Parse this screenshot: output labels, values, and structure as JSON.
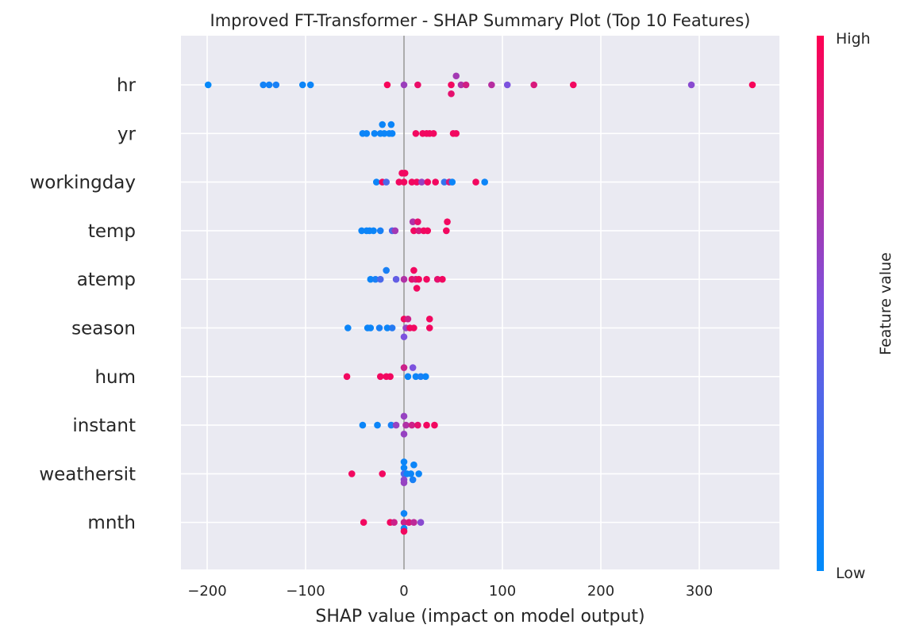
{
  "chart_data": {
    "type": "scatter",
    "title": "Improved FT-Transformer - SHAP Summary Plot (Top 10 Features)",
    "xlabel": "SHAP value (impact on model output)",
    "xlim": [
      -225,
      380
    ],
    "xticks": [
      -200,
      -100,
      0,
      100,
      200,
      300
    ],
    "xtick_labels": [
      "−200",
      "−100",
      "0",
      "100",
      "200",
      "300"
    ],
    "grid": true,
    "colorbar": {
      "label": "Feature value",
      "high_label": "High",
      "low_label": "Low",
      "low_color": "#008bfb",
      "mid_color": "#7c52de",
      "high_color": "#ff0052"
    },
    "features": [
      {
        "label": "hr",
        "points": [
          {
            "x": -199,
            "v": 0.02,
            "j": 0
          },
          {
            "x": -143,
            "v": 0.08,
            "j": 0
          },
          {
            "x": -137,
            "v": 0.08,
            "j": 0
          },
          {
            "x": -130,
            "v": 0.1,
            "j": 0
          },
          {
            "x": -103,
            "v": 0.05,
            "j": 0
          },
          {
            "x": -95,
            "v": 0.05,
            "j": 0
          },
          {
            "x": -17,
            "v": 0.97,
            "j": 0
          },
          {
            "x": 0,
            "v": 0.62,
            "j": 0
          },
          {
            "x": 14,
            "v": 0.92,
            "j": 0
          },
          {
            "x": 48,
            "v": 0.95,
            "j": 0
          },
          {
            "x": 53,
            "v": 0.65,
            "j": -0.45
          },
          {
            "x": 58,
            "v": 0.7,
            "j": 0
          },
          {
            "x": 48,
            "v": 0.9,
            "j": 0.45
          },
          {
            "x": 63,
            "v": 0.82,
            "j": 0
          },
          {
            "x": 89,
            "v": 0.72,
            "j": 0
          },
          {
            "x": 105,
            "v": 0.5,
            "j": 0
          },
          {
            "x": 132,
            "v": 0.85,
            "j": 0
          },
          {
            "x": 172,
            "v": 0.95,
            "j": 0
          },
          {
            "x": 292,
            "v": 0.55,
            "j": 0
          },
          {
            "x": 354,
            "v": 0.97,
            "j": 0
          }
        ]
      },
      {
        "label": "yr",
        "points": [
          {
            "x": -42,
            "v": 0.05,
            "j": 0
          },
          {
            "x": -38,
            "v": 0.05,
            "j": 0
          },
          {
            "x": -30,
            "v": 0.05,
            "j": 0
          },
          {
            "x": -24,
            "v": 0.05,
            "j": 0
          },
          {
            "x": -22,
            "v": 0.05,
            "j": -0.45
          },
          {
            "x": -20,
            "v": 0.05,
            "j": 0
          },
          {
            "x": -15,
            "v": 0.05,
            "j": 0
          },
          {
            "x": -12,
            "v": 0.05,
            "j": 0
          },
          {
            "x": -13,
            "v": 0.05,
            "j": -0.45
          },
          {
            "x": 12,
            "v": 0.95,
            "j": 0
          },
          {
            "x": 19,
            "v": 0.95,
            "j": 0
          },
          {
            "x": 23,
            "v": 0.95,
            "j": 0
          },
          {
            "x": 26,
            "v": 0.95,
            "j": 0
          },
          {
            "x": 30,
            "v": 0.95,
            "j": 0
          },
          {
            "x": 50,
            "v": 0.95,
            "j": 0
          },
          {
            "x": 53,
            "v": 0.95,
            "j": 0
          }
        ]
      },
      {
        "label": "workingday",
        "points": [
          {
            "x": -28,
            "v": 0.05,
            "j": 0
          },
          {
            "x": -22,
            "v": 0.95,
            "j": 0
          },
          {
            "x": -18,
            "v": 0.3,
            "j": 0
          },
          {
            "x": -5,
            "v": 0.95,
            "j": 0
          },
          {
            "x": -2,
            "v": 0.95,
            "j": -0.45
          },
          {
            "x": 0,
            "v": 0.95,
            "j": 0
          },
          {
            "x": 1,
            "v": 0.95,
            "j": -0.45
          },
          {
            "x": 8,
            "v": 0.95,
            "j": 0
          },
          {
            "x": 13,
            "v": 0.95,
            "j": 0
          },
          {
            "x": 18,
            "v": 0.6,
            "j": 0
          },
          {
            "x": 24,
            "v": 0.95,
            "j": 0
          },
          {
            "x": 32,
            "v": 0.95,
            "j": 0
          },
          {
            "x": 41,
            "v": 0.2,
            "j": 0
          },
          {
            "x": 46,
            "v": 0.85,
            "j": 0
          },
          {
            "x": 49,
            "v": 0.05,
            "j": 0
          },
          {
            "x": 73,
            "v": 0.95,
            "j": 0
          },
          {
            "x": 82,
            "v": 0.05,
            "j": 0
          }
        ]
      },
      {
        "label": "temp",
        "points": [
          {
            "x": -43,
            "v": 0.05,
            "j": 0
          },
          {
            "x": -38,
            "v": 0.05,
            "j": 0
          },
          {
            "x": -35,
            "v": 0.05,
            "j": 0
          },
          {
            "x": -31,
            "v": 0.05,
            "j": 0
          },
          {
            "x": -24,
            "v": 0.1,
            "j": 0
          },
          {
            "x": -12,
            "v": 0.3,
            "j": 0
          },
          {
            "x": -9,
            "v": 0.65,
            "j": 0
          },
          {
            "x": 9,
            "v": 0.7,
            "j": -0.45
          },
          {
            "x": 10,
            "v": 0.95,
            "j": 0
          },
          {
            "x": 14,
            "v": 0.9,
            "j": -0.45
          },
          {
            "x": 15,
            "v": 0.85,
            "j": 0
          },
          {
            "x": 20,
            "v": 0.95,
            "j": 0
          },
          {
            "x": 24,
            "v": 0.95,
            "j": 0
          },
          {
            "x": 43,
            "v": 0.95,
            "j": 0
          },
          {
            "x": 44,
            "v": 0.95,
            "j": -0.45
          }
        ]
      },
      {
        "label": "atemp",
        "points": [
          {
            "x": -34,
            "v": 0.05,
            "j": 0
          },
          {
            "x": -29,
            "v": 0.1,
            "j": 0
          },
          {
            "x": -24,
            "v": 0.3,
            "j": 0
          },
          {
            "x": -18,
            "v": 0.1,
            "j": -0.45
          },
          {
            "x": -8,
            "v": 0.4,
            "j": 0
          },
          {
            "x": 0,
            "v": 0.7,
            "j": 0
          },
          {
            "x": 8,
            "v": 0.9,
            "j": 0
          },
          {
            "x": 10,
            "v": 0.95,
            "j": -0.45
          },
          {
            "x": 12,
            "v": 0.85,
            "j": 0
          },
          {
            "x": 13,
            "v": 0.95,
            "j": 0.45
          },
          {
            "x": 15,
            "v": 0.95,
            "j": 0
          },
          {
            "x": 23,
            "v": 0.95,
            "j": 0
          },
          {
            "x": 34,
            "v": 0.9,
            "j": 0
          },
          {
            "x": 39,
            "v": 0.95,
            "j": 0
          }
        ]
      },
      {
        "label": "season",
        "points": [
          {
            "x": -57,
            "v": 0.05,
            "j": 0
          },
          {
            "x": -37,
            "v": 0.05,
            "j": 0
          },
          {
            "x": -34,
            "v": 0.05,
            "j": 0
          },
          {
            "x": -25,
            "v": 0.1,
            "j": 0
          },
          {
            "x": -17,
            "v": 0.05,
            "j": 0
          },
          {
            "x": -12,
            "v": 0.15,
            "j": 0
          },
          {
            "x": 0,
            "v": 0.95,
            "j": -0.45
          },
          {
            "x": 2,
            "v": 0.6,
            "j": 0
          },
          {
            "x": 4,
            "v": 0.8,
            "j": -0.45
          },
          {
            "x": 6,
            "v": 0.95,
            "j": 0
          },
          {
            "x": 10,
            "v": 0.95,
            "j": 0
          },
          {
            "x": 26,
            "v": 0.95,
            "j": -0.45
          },
          {
            "x": 26,
            "v": 0.95,
            "j": 0
          },
          {
            "x": 0,
            "v": 0.5,
            "j": 0.45
          }
        ]
      },
      {
        "label": "hum",
        "points": [
          {
            "x": -58,
            "v": 0.95,
            "j": 0
          },
          {
            "x": -24,
            "v": 0.95,
            "j": 0
          },
          {
            "x": -18,
            "v": 0.95,
            "j": 0
          },
          {
            "x": -14,
            "v": 0.95,
            "j": 0
          },
          {
            "x": 0,
            "v": 0.8,
            "j": -0.45
          },
          {
            "x": 4,
            "v": 0.05,
            "j": 0
          },
          {
            "x": 9,
            "v": 0.5,
            "j": -0.45
          },
          {
            "x": 12,
            "v": 0.05,
            "j": 0
          },
          {
            "x": 17,
            "v": 0.1,
            "j": 0
          },
          {
            "x": 22,
            "v": 0.05,
            "j": 0
          }
        ]
      },
      {
        "label": "instant",
        "points": [
          {
            "x": -42,
            "v": 0.05,
            "j": 0
          },
          {
            "x": -27,
            "v": 0.05,
            "j": 0
          },
          {
            "x": -13,
            "v": 0.1,
            "j": 0
          },
          {
            "x": -8,
            "v": 0.6,
            "j": 0
          },
          {
            "x": 0,
            "v": 0.6,
            "j": -0.45
          },
          {
            "x": 2,
            "v": 0.7,
            "j": 0
          },
          {
            "x": 8,
            "v": 0.8,
            "j": 0
          },
          {
            "x": 14,
            "v": 0.9,
            "j": 0
          },
          {
            "x": 23,
            "v": 0.95,
            "j": 0
          },
          {
            "x": 31,
            "v": 0.95,
            "j": 0
          },
          {
            "x": 0,
            "v": 0.6,
            "j": 0.45
          }
        ]
      },
      {
        "label": "weathersit",
        "points": [
          {
            "x": -53,
            "v": 0.95,
            "j": 0
          },
          {
            "x": -22,
            "v": 0.95,
            "j": 0
          },
          {
            "x": 0,
            "v": 0.05,
            "j": -0.6
          },
          {
            "x": 0,
            "v": 0.05,
            "j": -0.3
          },
          {
            "x": 0,
            "v": 0.3,
            "j": 0
          },
          {
            "x": 3,
            "v": 0.05,
            "j": 0
          },
          {
            "x": 7,
            "v": 0.05,
            "j": 0
          },
          {
            "x": 10,
            "v": 0.05,
            "j": -0.45
          },
          {
            "x": 15,
            "v": 0.05,
            "j": 0
          },
          {
            "x": 9,
            "v": 0.1,
            "j": 0.3
          },
          {
            "x": 0,
            "v": 0.55,
            "j": 0.3
          },
          {
            "x": 0,
            "v": 0.6,
            "j": 0.45
          }
        ]
      },
      {
        "label": "mnth",
        "points": [
          {
            "x": -41,
            "v": 0.95,
            "j": 0
          },
          {
            "x": -14,
            "v": 0.95,
            "j": 0
          },
          {
            "x": -10,
            "v": 0.8,
            "j": 0
          },
          {
            "x": 0,
            "v": 0.05,
            "j": -0.45
          },
          {
            "x": 0,
            "v": 0.8,
            "j": 0
          },
          {
            "x": 5,
            "v": 0.85,
            "j": 0
          },
          {
            "x": 10,
            "v": 0.75,
            "j": 0
          },
          {
            "x": 17,
            "v": 0.55,
            "j": 0
          },
          {
            "x": 0,
            "v": 0.05,
            "j": 0.3
          },
          {
            "x": 0,
            "v": 0.95,
            "j": 0.45
          }
        ]
      }
    ]
  }
}
